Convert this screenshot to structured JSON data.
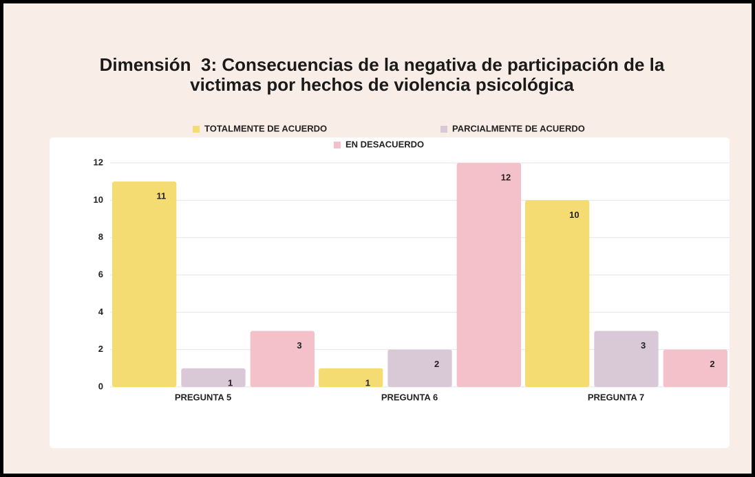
{
  "chart_data": {
    "type": "bar",
    "title": "Dimensión  3: Consecuencias de la negativa de participación de la victimas por hechos de violencia psicológica",
    "categories": [
      "PREGUNTA 5",
      "PREGUNTA 6",
      "PREGUNTA 7"
    ],
    "series": [
      {
        "name": "TOTALMENTE DE ACUERDO",
        "color": "#f5dc72",
        "values": [
          11,
          1,
          10
        ]
      },
      {
        "name": "PARCIALMENTE DE ACUERDO",
        "color": "#d9c8d5",
        "values": [
          1,
          2,
          3
        ]
      },
      {
        "name": "EN DESACUERDO",
        "color": "#f4c1ca",
        "values": [
          3,
          12,
          2
        ]
      }
    ],
    "ylim": [
      0,
      12
    ],
    "yticks": [
      0,
      2,
      4,
      6,
      8,
      10,
      12
    ],
    "grid": true,
    "legend": "top"
  }
}
